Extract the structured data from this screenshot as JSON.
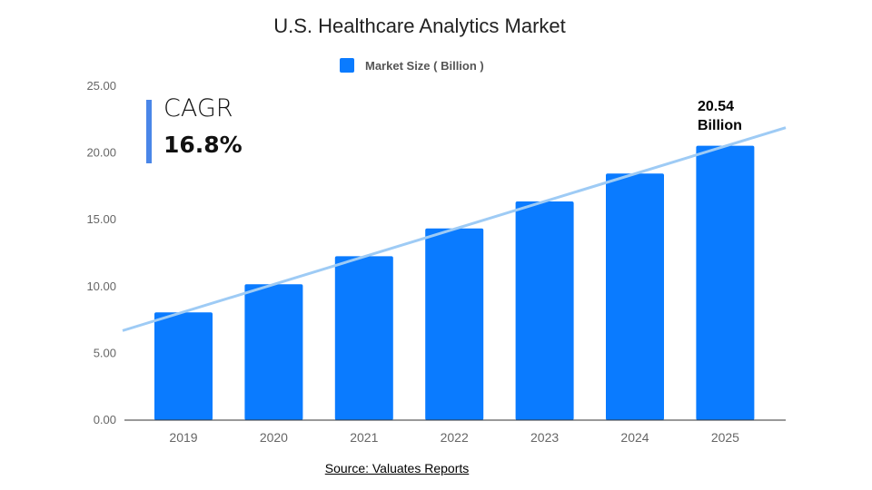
{
  "chart_data": {
    "type": "bar",
    "title": "U.S. Healthcare Analytics Market",
    "categories": [
      "2019",
      "2020",
      "2021",
      "2022",
      "2023",
      "2024",
      "2025"
    ],
    "series": [
      {
        "name": "Market Size ( Billion )",
        "values": [
          8.07,
          10.17,
          12.27,
          14.35,
          16.37,
          18.46,
          20.54
        ],
        "color": "#0a7bff"
      }
    ],
    "ylim": [
      0,
      25
    ],
    "yticks": [
      "0.00",
      "5.00",
      "10.00",
      "15.00",
      "20.00",
      "25.00"
    ],
    "grid": false,
    "legend": "top-center",
    "trendline": {
      "color": "#9ecbf5",
      "start": 6.7,
      "end": 21.9
    },
    "annotation": {
      "line1": "20.54",
      "line2": "Billion"
    },
    "cagr": {
      "label": "CAGR",
      "value": "16.8%",
      "color": "#4a86e8"
    }
  },
  "source": "Source: Valuates Reports"
}
